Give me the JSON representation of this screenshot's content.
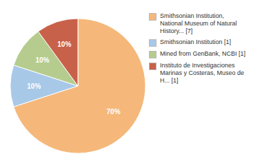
{
  "chart_data": {
    "type": "pie",
    "categories": [
      "Smithsonian Institution,\nNational Museum of Natural\nHistory... [7]",
      "Smithsonian Institution [1]",
      "Mined from GenBank, NCBI [1]",
      "Instituto de Investigaciones\nMarinas y Costeras, Museo de\nH... [1]"
    ],
    "values": [
      70,
      10,
      10,
      10
    ],
    "value_labels": [
      "70%",
      "10%",
      "10%",
      "10%"
    ],
    "colors": [
      "#f5b87a",
      "#a8c8e8",
      "#b5cc8e",
      "#c8614a"
    ],
    "data_labels": true,
    "legend": "right"
  }
}
